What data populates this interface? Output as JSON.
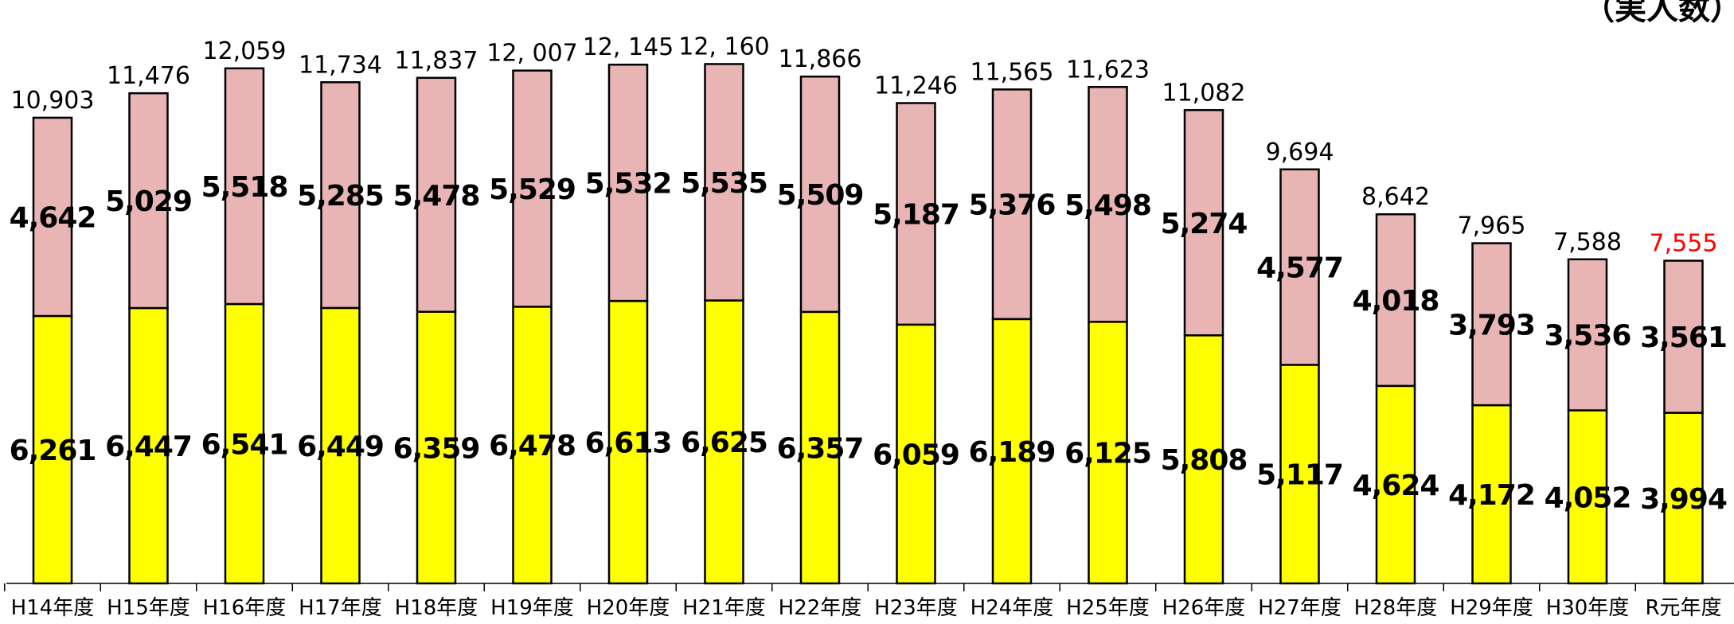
{
  "unit_note": "（実人数）",
  "colors": {
    "bottom_segment": "#ffff00",
    "top_segment": "#e8b4b4",
    "outline": "#000000",
    "highlight_total": "#ff0000"
  },
  "chart_data": {
    "type": "bar",
    "stacked": true,
    "title": "",
    "xlabel": "",
    "ylabel": "",
    "categories": [
      "H14年度",
      "H15年度",
      "H16年度",
      "H17年度",
      "H18年度",
      "H19年度",
      "H20年度",
      "H21年度",
      "H22年度",
      "H23年度",
      "H24年度",
      "H25年度",
      "H26年度",
      "H27年度",
      "H28年度",
      "H29年度",
      "H30年度",
      "R元年度"
    ],
    "series": [
      {
        "values": [
          6261,
          6447,
          6541,
          6449,
          6359,
          6478,
          6613,
          6625,
          6357,
          6059,
          6189,
          6125,
          5808,
          5117,
          4624,
          4172,
          4052,
          3994
        ]
      },
      {
        "values": [
          4642,
          5029,
          5518,
          5285,
          5478,
          5529,
          5532,
          5535,
          5509,
          5187,
          5376,
          5498,
          5274,
          4577,
          4018,
          3793,
          3536,
          3561
        ]
      }
    ],
    "segment_labels": [
      [
        "6,261",
        "6,447",
        "6,541",
        "6,449",
        "6,359",
        "6,478",
        "6,613",
        "6,625",
        "6,357",
        "6,059",
        "6,189",
        "6,125",
        "5,808",
        "5,117",
        "4,624",
        "4,172",
        "4,052",
        "3,994"
      ],
      [
        "4,642",
        "5,029",
        "5,518",
        "5,285",
        "5,478",
        "5,529",
        "5,532",
        "5,535",
        "5,509",
        "5,187",
        "5,376",
        "5,498",
        "5,274",
        "4,577",
        "4,018",
        "3,793",
        "3,536",
        "3,561"
      ]
    ],
    "totals": [
      10903,
      11476,
      12059,
      11734,
      11837,
      12007,
      12145,
      12160,
      11866,
      11246,
      11565,
      11623,
      11082,
      9694,
      8642,
      7965,
      7588,
      7555
    ],
    "total_labels": [
      "10,903",
      "11,476",
      "12,059",
      "11,734",
      "11,837",
      "12, 007",
      "12, 145",
      "12, 160",
      "11,866",
      "11,246",
      "11,565",
      "11,623",
      "11,082",
      "9,694",
      "8,642",
      "7,965",
      "7,588",
      "7,555"
    ],
    "highlighted_total_index": 17,
    "ylim": [
      0,
      13100
    ],
    "grid": false,
    "legend": "none"
  }
}
